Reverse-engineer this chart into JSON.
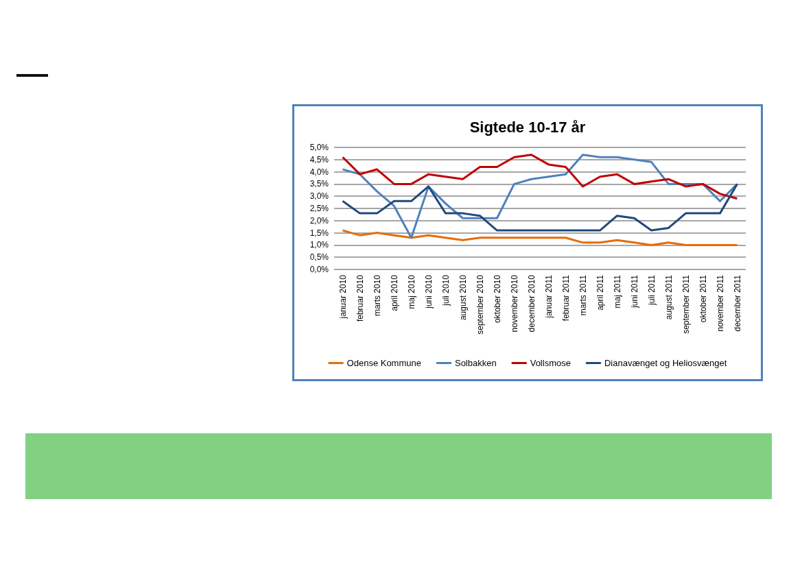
{
  "chart_data": {
    "type": "line",
    "title": "Sigtede 10-17 år",
    "categories": [
      "januar 2010",
      "februar 2010",
      "marts 2010",
      "april 2010",
      "maj 2010",
      "juni 2010",
      "juli 2010",
      "august 2010",
      "september 2010",
      "oktober 2010",
      "november 2010",
      "december 2010",
      "januar 2011",
      "februar 2011",
      "marts 2011",
      "april 2011",
      "maj 2011",
      "juni 2011",
      "juli 2011",
      "august 2011",
      "september 2011",
      "oktober 2011",
      "november 2011",
      "december 2011"
    ],
    "series": [
      {
        "name": "Odense Kommune",
        "color": "#e46c0a",
        "values": [
          1.6,
          1.4,
          1.5,
          1.4,
          1.3,
          1.4,
          1.3,
          1.2,
          1.3,
          1.3,
          1.3,
          1.3,
          1.3,
          1.3,
          1.1,
          1.1,
          1.2,
          1.1,
          1.0,
          1.1,
          1.0,
          1.0,
          1.0,
          1.0
        ]
      },
      {
        "name": "Solbakken",
        "color": "#4f81bd",
        "values": [
          4.1,
          3.9,
          3.2,
          2.6,
          1.3,
          3.4,
          2.7,
          2.1,
          2.1,
          2.1,
          3.5,
          3.7,
          3.8,
          3.9,
          4.7,
          4.6,
          4.6,
          4.5,
          4.4,
          3.5,
          3.5,
          3.5,
          2.8,
          3.5
        ]
      },
      {
        "name": "Vollsmose",
        "color": "#c00000",
        "values": [
          4.6,
          3.9,
          4.1,
          3.5,
          3.5,
          3.9,
          3.8,
          3.7,
          4.2,
          4.2,
          4.6,
          4.7,
          4.3,
          4.2,
          3.4,
          3.8,
          3.9,
          3.5,
          3.6,
          3.7,
          3.4,
          3.5,
          3.1,
          2.9
        ]
      },
      {
        "name": "Dianavænget og Heliosvænget",
        "color": "#1f497d",
        "values": [
          2.8,
          2.3,
          2.3,
          2.8,
          2.8,
          3.4,
          2.3,
          2.3,
          2.2,
          1.6,
          1.6,
          1.6,
          1.6,
          1.6,
          1.6,
          1.6,
          2.2,
          2.1,
          1.6,
          1.7,
          2.3,
          2.3,
          2.3,
          3.5
        ]
      }
    ],
    "ylim": [
      0,
      5
    ],
    "yticks": [
      {
        "value": 0,
        "label": "0,0%"
      },
      {
        "value": 0.5,
        "label": "0,5%"
      },
      {
        "value": 1,
        "label": "1,0%"
      },
      {
        "value": 1.5,
        "label": "1,5%"
      },
      {
        "value": 2,
        "label": "2,0%"
      },
      {
        "value": 2.5,
        "label": "2,5%"
      },
      {
        "value": 3,
        "label": "3,0%"
      },
      {
        "value": 3.5,
        "label": "3,5%"
      },
      {
        "value": 4,
        "label": "4,0%"
      },
      {
        "value": 4.5,
        "label": "4,5%"
      },
      {
        "value": 5,
        "label": "5,0%"
      }
    ],
    "grid": "y",
    "legend": "bottom",
    "marker": "none",
    "line_style": "solid"
  }
}
